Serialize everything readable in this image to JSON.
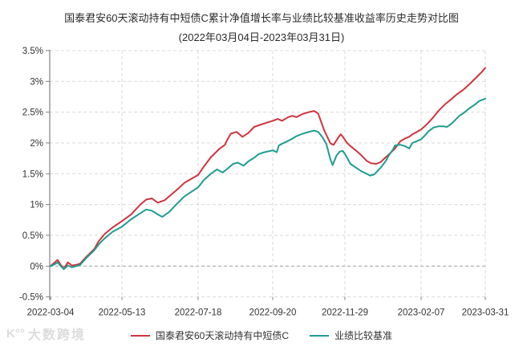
{
  "chart_data": {
    "type": "line",
    "title": "国泰君安60天滚动持有中短债C累计净值增长率与业绩比较基准收益率历史走势对比图",
    "subtitle": "(2022年03月04日-2023年03月31日)",
    "grid": "dashed",
    "legend_position": "bottom",
    "ylim": [
      -0.5,
      3.5
    ],
    "y_ticks": [
      {
        "label": "3.5%",
        "value": 3.5
      },
      {
        "label": "3%",
        "value": 3.0
      },
      {
        "label": "2.5%",
        "value": 2.5
      },
      {
        "label": "2%",
        "value": 2.0
      },
      {
        "label": "1.5%",
        "value": 1.5
      },
      {
        "label": "1%",
        "value": 1.0
      },
      {
        "label": "0.5%",
        "value": 0.5
      },
      {
        "label": "0%",
        "value": 0.0
      },
      {
        "label": "-0.5%",
        "value": -0.5
      }
    ],
    "x_ticks": [
      "2022-03-04",
      "2022-05-13",
      "2022-07-18",
      "2022-09-20",
      "2022-11-29",
      "2023-02-07",
      "2023-03-31"
    ],
    "series": [
      {
        "name": "国泰君安60天滚动持有中短债C",
        "color": "#d0343f",
        "unit": "%",
        "points": [
          [
            "2022-03-04",
            0.0
          ],
          [
            "2022-03-08",
            0.06
          ],
          [
            "2022-03-11",
            0.1
          ],
          [
            "2022-03-14",
            0.02
          ],
          [
            "2022-03-17",
            -0.04
          ],
          [
            "2022-03-21",
            0.06
          ],
          [
            "2022-03-25",
            0.01
          ],
          [
            "2022-03-29",
            0.02
          ],
          [
            "2022-04-02",
            0.04
          ],
          [
            "2022-04-08",
            0.15
          ],
          [
            "2022-04-16",
            0.28
          ],
          [
            "2022-04-20",
            0.4
          ],
          [
            "2022-04-26",
            0.52
          ],
          [
            "2022-05-04",
            0.63
          ],
          [
            "2022-05-13",
            0.73
          ],
          [
            "2022-05-21",
            0.84
          ],
          [
            "2022-05-29",
            1.0
          ],
          [
            "2022-06-03",
            1.08
          ],
          [
            "2022-06-08",
            1.1
          ],
          [
            "2022-06-13",
            1.03
          ],
          [
            "2022-06-19",
            1.07
          ],
          [
            "2022-06-29",
            1.23
          ],
          [
            "2022-07-06",
            1.35
          ],
          [
            "2022-07-18",
            1.48
          ],
          [
            "2022-07-23",
            1.62
          ],
          [
            "2022-07-29",
            1.77
          ],
          [
            "2022-08-05",
            1.9
          ],
          [
            "2022-08-10",
            1.97
          ],
          [
            "2022-08-12",
            2.05
          ],
          [
            "2022-08-15",
            2.15
          ],
          [
            "2022-08-20",
            2.18
          ],
          [
            "2022-08-25",
            2.1
          ],
          [
            "2022-08-30",
            2.16
          ],
          [
            "2022-09-04",
            2.26
          ],
          [
            "2022-09-10",
            2.3
          ],
          [
            "2022-09-15",
            2.33
          ],
          [
            "2022-09-20",
            2.36
          ],
          [
            "2022-09-25",
            2.39
          ],
          [
            "2022-09-29",
            2.36
          ],
          [
            "2022-10-05",
            2.42
          ],
          [
            "2022-10-09",
            2.44
          ],
          [
            "2022-10-13",
            2.42
          ],
          [
            "2022-10-19",
            2.47
          ],
          [
            "2022-10-25",
            2.5
          ],
          [
            "2022-10-30",
            2.52
          ],
          [
            "2022-11-03",
            2.48
          ],
          [
            "2022-11-09",
            2.2
          ],
          [
            "2022-11-15",
            1.99
          ],
          [
            "2022-11-18",
            1.97
          ],
          [
            "2022-11-23",
            2.1
          ],
          [
            "2022-11-25",
            2.14
          ],
          [
            "2022-11-27",
            2.1
          ],
          [
            "2022-11-29",
            2.05
          ],
          [
            "2022-12-01",
            2.0
          ],
          [
            "2022-12-04",
            1.95
          ],
          [
            "2022-12-09",
            1.88
          ],
          [
            "2022-12-14",
            1.8
          ],
          [
            "2022-12-19",
            1.71
          ],
          [
            "2022-12-23",
            1.67
          ],
          [
            "2022-12-28",
            1.66
          ],
          [
            "2023-01-01",
            1.69
          ],
          [
            "2023-01-05",
            1.76
          ],
          [
            "2023-01-10",
            1.84
          ],
          [
            "2023-01-14",
            1.91
          ],
          [
            "2023-01-19",
            2.03
          ],
          [
            "2023-01-23",
            2.07
          ],
          [
            "2023-01-27",
            2.1
          ],
          [
            "2023-01-30",
            2.14
          ],
          [
            "2023-02-03",
            2.18
          ],
          [
            "2023-02-07",
            2.22
          ],
          [
            "2023-02-12",
            2.31
          ],
          [
            "2023-02-17",
            2.42
          ],
          [
            "2023-02-21",
            2.52
          ],
          [
            "2023-02-26",
            2.62
          ],
          [
            "2023-03-04",
            2.72
          ],
          [
            "2023-03-08",
            2.79
          ],
          [
            "2023-03-13",
            2.86
          ],
          [
            "2023-03-18",
            2.95
          ],
          [
            "2023-03-23",
            3.05
          ],
          [
            "2023-03-28",
            3.15
          ],
          [
            "2023-03-31",
            3.22
          ]
        ]
      },
      {
        "name": "业绩比较基准",
        "color": "#1f9c90",
        "unit": "%",
        "points": [
          [
            "2022-03-04",
            0.0
          ],
          [
            "2022-03-08",
            0.03
          ],
          [
            "2022-03-11",
            0.06
          ],
          [
            "2022-03-14",
            0.0
          ],
          [
            "2022-03-17",
            -0.05
          ],
          [
            "2022-03-21",
            0.01
          ],
          [
            "2022-03-25",
            -0.02
          ],
          [
            "2022-03-29",
            0.0
          ],
          [
            "2022-04-02",
            0.02
          ],
          [
            "2022-04-08",
            0.13
          ],
          [
            "2022-04-16",
            0.26
          ],
          [
            "2022-04-20",
            0.35
          ],
          [
            "2022-04-26",
            0.45
          ],
          [
            "2022-05-04",
            0.56
          ],
          [
            "2022-05-13",
            0.64
          ],
          [
            "2022-05-21",
            0.76
          ],
          [
            "2022-05-29",
            0.86
          ],
          [
            "2022-06-03",
            0.92
          ],
          [
            "2022-06-08",
            0.9
          ],
          [
            "2022-06-13",
            0.84
          ],
          [
            "2022-06-17",
            0.8
          ],
          [
            "2022-06-23",
            0.88
          ],
          [
            "2022-06-29",
            1.0
          ],
          [
            "2022-07-06",
            1.13
          ],
          [
            "2022-07-18",
            1.28
          ],
          [
            "2022-07-23",
            1.4
          ],
          [
            "2022-07-29",
            1.5
          ],
          [
            "2022-08-03",
            1.57
          ],
          [
            "2022-08-08",
            1.52
          ],
          [
            "2022-08-12",
            1.58
          ],
          [
            "2022-08-17",
            1.66
          ],
          [
            "2022-08-21",
            1.68
          ],
          [
            "2022-08-26",
            1.63
          ],
          [
            "2022-08-30",
            1.7
          ],
          [
            "2022-09-04",
            1.76
          ],
          [
            "2022-09-08",
            1.82
          ],
          [
            "2022-09-13",
            1.85
          ],
          [
            "2022-09-20",
            1.88
          ],
          [
            "2022-09-24",
            1.85
          ],
          [
            "2022-09-26",
            1.96
          ],
          [
            "2022-10-02",
            2.01
          ],
          [
            "2022-10-08",
            2.06
          ],
          [
            "2022-10-13",
            2.11
          ],
          [
            "2022-10-19",
            2.15
          ],
          [
            "2022-10-25",
            2.18
          ],
          [
            "2022-10-30",
            2.2
          ],
          [
            "2022-11-03",
            2.18
          ],
          [
            "2022-11-07",
            2.1
          ],
          [
            "2022-11-11",
            1.98
          ],
          [
            "2022-11-15",
            1.73
          ],
          [
            "2022-11-17",
            1.64
          ],
          [
            "2022-11-21",
            1.8
          ],
          [
            "2022-11-24",
            1.86
          ],
          [
            "2022-11-27",
            1.87
          ],
          [
            "2022-11-29",
            1.82
          ],
          [
            "2022-12-01",
            1.76
          ],
          [
            "2022-12-04",
            1.66
          ],
          [
            "2022-12-09",
            1.6
          ],
          [
            "2022-12-14",
            1.54
          ],
          [
            "2022-12-19",
            1.5
          ],
          [
            "2022-12-22",
            1.47
          ],
          [
            "2022-12-26",
            1.49
          ],
          [
            "2023-01-01",
            1.6
          ],
          [
            "2023-01-06",
            1.72
          ],
          [
            "2023-01-08",
            1.79
          ],
          [
            "2023-01-12",
            1.89
          ],
          [
            "2023-01-14",
            1.96
          ],
          [
            "2023-01-19",
            1.97
          ],
          [
            "2023-01-23",
            1.95
          ],
          [
            "2023-01-27",
            1.91
          ],
          [
            "2023-01-30",
            2.0
          ],
          [
            "2023-02-03",
            2.03
          ],
          [
            "2023-02-07",
            2.06
          ],
          [
            "2023-02-10",
            2.12
          ],
          [
            "2023-02-13",
            2.19
          ],
          [
            "2023-02-17",
            2.25
          ],
          [
            "2023-02-21",
            2.27
          ],
          [
            "2023-02-25",
            2.27
          ],
          [
            "2023-02-28",
            2.26
          ],
          [
            "2023-03-04",
            2.32
          ],
          [
            "2023-03-08",
            2.4
          ],
          [
            "2023-03-10",
            2.44
          ],
          [
            "2023-03-13",
            2.48
          ],
          [
            "2023-03-18",
            2.56
          ],
          [
            "2023-03-23",
            2.63
          ],
          [
            "2023-03-26",
            2.68
          ],
          [
            "2023-03-31",
            2.72
          ]
        ]
      }
    ],
    "colors": {
      "fund_line": "#d0343f",
      "benchmark_line": "#1f9c90",
      "gridline": "#d9d9d9",
      "zero_gridline": "#9c9c9c",
      "axis": "#808080",
      "text": "#333333"
    }
  },
  "watermark": {
    "logo": "K°°",
    "text": "大数跨境"
  }
}
